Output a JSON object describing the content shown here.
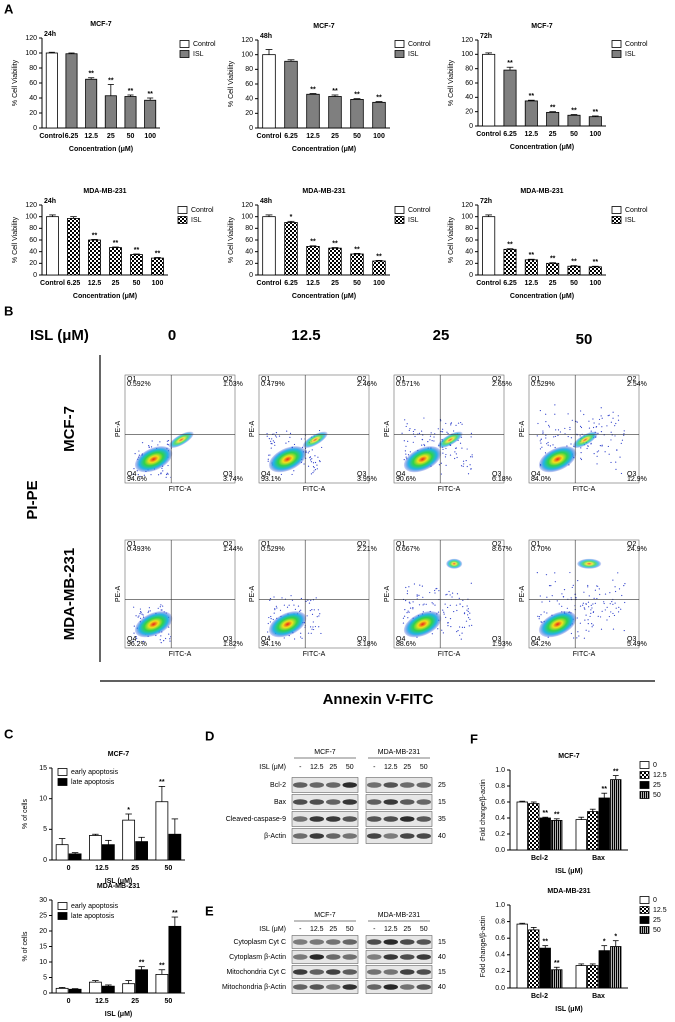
{
  "panel_labels": [
    "A",
    "B",
    "C",
    "D",
    "E",
    "F"
  ],
  "chart_data": [
    {
      "type": "bar",
      "title": "MCF-7",
      "subtitle": "24h",
      "xlabel": "Concentration (μM)",
      "ylabel": "% Cell Viability",
      "categories": [
        "Control",
        "6.25",
        "12.5",
        "25",
        "50",
        "100"
      ],
      "ylim": [
        0,
        120
      ],
      "yticks": [
        0,
        20,
        40,
        60,
        80,
        100,
        120
      ],
      "series": [
        {
          "name": "Control",
          "color": "#ffffff",
          "values": [
            100,
            null,
            null,
            null,
            null,
            null
          ],
          "errors": [
            1,
            null,
            null,
            null,
            null,
            null
          ]
        },
        {
          "name": "ISL",
          "color": "#7f7f7f",
          "values": [
            null,
            99,
            65,
            43,
            42,
            37
          ],
          "errors": [
            null,
            1,
            2,
            15,
            2,
            3
          ],
          "labels": [
            null,
            null,
            "**",
            "**",
            "**",
            "**"
          ]
        }
      ]
    },
    {
      "type": "bar",
      "title": "MCF-7",
      "subtitle": "48h",
      "xlabel": "Concentration (μM)",
      "ylabel": "% Cell Viability",
      "categories": [
        "Control",
        "6.25",
        "12.5",
        "25",
        "50",
        "100"
      ],
      "ylim": [
        0,
        120
      ],
      "yticks": [
        0,
        20,
        40,
        60,
        80,
        100,
        120
      ],
      "series": [
        {
          "name": "Control",
          "color": "#ffffff",
          "values": [
            100,
            null,
            null,
            null,
            null,
            null
          ],
          "errors": [
            7,
            null,
            null,
            null,
            null,
            null
          ]
        },
        {
          "name": "ISL",
          "color": "#7f7f7f",
          "values": [
            null,
            91,
            46,
            43,
            39,
            35
          ],
          "errors": [
            null,
            2,
            1,
            2,
            1,
            1
          ],
          "labels": [
            null,
            null,
            "**",
            "**",
            "**",
            "**"
          ]
        }
      ]
    },
    {
      "type": "bar",
      "title": "MCF-7",
      "subtitle": "72h",
      "xlabel": "Concentration (μM)",
      "ylabel": "% Cell Viability",
      "categories": [
        "Control",
        "6.25",
        "12.5",
        "25",
        "50",
        "100"
      ],
      "ylim": [
        0,
        120
      ],
      "yticks": [
        0,
        20,
        40,
        60,
        80,
        100,
        120
      ],
      "series": [
        {
          "name": "Control",
          "color": "#ffffff",
          "values": [
            100,
            null,
            null,
            null,
            null,
            null
          ],
          "errors": [
            2,
            null,
            null,
            null,
            null,
            null
          ]
        },
        {
          "name": "ISL",
          "color": "#7f7f7f",
          "values": [
            null,
            78,
            35,
            19,
            15,
            13
          ],
          "errors": [
            null,
            4,
            1,
            1,
            1,
            1
          ],
          "labels": [
            null,
            "**",
            "**",
            "**",
            "**",
            "**"
          ]
        }
      ]
    },
    {
      "type": "bar",
      "title": "MDA-MB-231",
      "subtitle": "24h",
      "xlabel": "Concentration (μM)",
      "ylabel": "% Cell Viability",
      "categories": [
        "Control",
        "6.25",
        "12.5",
        "25",
        "50",
        "100"
      ],
      "ylim": [
        0,
        120
      ],
      "yticks": [
        0,
        20,
        40,
        60,
        80,
        100,
        120
      ],
      "series": [
        {
          "name": "Control",
          "color": "#ffffff",
          "values": [
            100,
            null,
            null,
            null,
            null,
            null
          ],
          "errors": [
            3,
            null,
            null,
            null,
            null,
            null
          ]
        },
        {
          "name": "ISL",
          "color": "#000000",
          "pattern": "checker",
          "values": [
            null,
            97,
            60,
            47,
            35,
            29
          ],
          "errors": [
            null,
            3,
            1,
            1,
            1,
            1
          ],
          "labels": [
            null,
            null,
            "**",
            "**",
            "**",
            "**"
          ]
        }
      ]
    },
    {
      "type": "bar",
      "title": "MDA-MB-231",
      "subtitle": "48h",
      "xlabel": "Concentration (μM)",
      "ylabel": "% Cell Viability",
      "categories": [
        "Control",
        "6.25",
        "12.5",
        "25",
        "50",
        "100"
      ],
      "ylim": [
        0,
        120
      ],
      "yticks": [
        0,
        20,
        40,
        60,
        80,
        100,
        120
      ],
      "series": [
        {
          "name": "Control",
          "color": "#ffffff",
          "values": [
            100,
            null,
            null,
            null,
            null,
            null
          ],
          "errors": [
            3,
            null,
            null,
            null,
            null,
            null
          ]
        },
        {
          "name": "ISL",
          "color": "#000000",
          "pattern": "checker",
          "values": [
            null,
            90,
            49,
            46,
            36,
            24
          ],
          "errors": [
            null,
            2,
            1,
            1,
            1,
            1
          ],
          "labels": [
            null,
            "*",
            "**",
            "**",
            "**",
            "**"
          ]
        }
      ]
    },
    {
      "type": "bar",
      "title": "MDA-MB-231",
      "subtitle": "72h",
      "xlabel": "Concentration (μM)",
      "ylabel": "% Cell Viability",
      "categories": [
        "Control",
        "6.25",
        "12.5",
        "25",
        "50",
        "100"
      ],
      "ylim": [
        0,
        120
      ],
      "yticks": [
        0,
        20,
        40,
        60,
        80,
        100,
        120
      ],
      "series": [
        {
          "name": "Control",
          "color": "#ffffff",
          "values": [
            100,
            null,
            null,
            null,
            null,
            null
          ],
          "errors": [
            3,
            null,
            null,
            null,
            null,
            null
          ]
        },
        {
          "name": "ISL",
          "color": "#000000",
          "pattern": "checker",
          "values": [
            null,
            44,
            26,
            20,
            15,
            14
          ],
          "errors": [
            null,
            1,
            1,
            1,
            1,
            1
          ],
          "labels": [
            null,
            "**",
            "**",
            "**",
            "**",
            "**"
          ]
        }
      ]
    },
    {
      "type": "bar",
      "title": "MCF-7",
      "xlabel": "ISL (μM)",
      "ylabel": "% of cells",
      "categories": [
        "0",
        "12.5",
        "25",
        "50"
      ],
      "ylim": [
        0,
        15
      ],
      "yticks": [
        0,
        5,
        10,
        15
      ],
      "series": [
        {
          "name": "early apoptosis",
          "color": "#ffffff",
          "values": [
            2.5,
            4,
            6.5,
            9.5
          ],
          "errors": [
            1,
            0.2,
            1,
            2.5
          ],
          "labels": [
            null,
            null,
            "*",
            "**"
          ]
        },
        {
          "name": "late apoptosis",
          "color": "#000000",
          "values": [
            1,
            2.5,
            3,
            4.2
          ],
          "errors": [
            0.2,
            0.7,
            0.7,
            2.5
          ]
        }
      ]
    },
    {
      "type": "bar",
      "title": "MDA-MB-231",
      "xlabel": "ISL (μM)",
      "ylabel": "% of cells",
      "categories": [
        "0",
        "12.5",
        "25",
        "50"
      ],
      "ylim": [
        0,
        30
      ],
      "yticks": [
        0,
        5,
        10,
        15,
        20,
        25,
        30
      ],
      "series": [
        {
          "name": "early apoptosis",
          "color": "#ffffff",
          "values": [
            1.5,
            3.5,
            3,
            6
          ],
          "errors": [
            0.3,
            0.5,
            1,
            1.5
          ],
          "labels": [
            null,
            null,
            null,
            "**"
          ]
        },
        {
          "name": "late apoptosis",
          "color": "#000000",
          "values": [
            1.2,
            2.2,
            7.5,
            21.5
          ],
          "errors": [
            0.2,
            0.4,
            1,
            3
          ],
          "labels": [
            null,
            null,
            "**",
            "**"
          ]
        }
      ]
    },
    {
      "type": "bar",
      "title": "MCF-7",
      "xlabel": "ISL (μM)",
      "ylabel": "Fold change/β-actin",
      "categories": [
        "Bcl-2",
        "Bax"
      ],
      "ylim": [
        0,
        1
      ],
      "yticks": [
        {
          "value": 0,
          "label": "0.0"
        },
        0.2,
        0.4,
        0.6,
        0.8,
        {
          "value": 1,
          "label": "1.0"
        }
      ],
      "series": [
        {
          "name": "0",
          "color": "#ffffff",
          "values": [
            0.6,
            0.38
          ],
          "errors": [
            0.01,
            0.03
          ]
        },
        {
          "name": "12.5",
          "color": "#000000",
          "pattern": "checker",
          "values": [
            0.58,
            0.48
          ],
          "errors": [
            0.02,
            0.03
          ]
        },
        {
          "name": "25",
          "color": "#000000",
          "values": [
            0.4,
            0.65
          ],
          "errors": [
            0.01,
            0.06
          ],
          "labels": [
            "**",
            "**"
          ]
        },
        {
          "name": "50",
          "color": "#000000",
          "pattern": "stripes",
          "values": [
            0.37,
            0.88
          ],
          "errors": [
            0.02,
            0.05
          ],
          "labels": [
            "**",
            "**"
          ]
        }
      ]
    },
    {
      "type": "bar",
      "title": "MDA-MB-231",
      "xlabel": "ISL (μM)",
      "ylabel": "Fold change/β-actin",
      "categories": [
        "Bcl-2",
        "Bax"
      ],
      "ylim": [
        0,
        1
      ],
      "yticks": [
        {
          "value": 0,
          "label": "0.0"
        },
        0.2,
        0.4,
        0.6,
        0.8,
        {
          "value": 1,
          "label": "1.0"
        }
      ],
      "series": [
        {
          "name": "0",
          "color": "#ffffff",
          "values": [
            0.77,
            0.27
          ],
          "errors": [
            0.01,
            0.02
          ]
        },
        {
          "name": "12.5",
          "color": "#000000",
          "pattern": "checker",
          "values": [
            0.7,
            0.27
          ],
          "errors": [
            0.03,
            0.02
          ]
        },
        {
          "name": "25",
          "color": "#000000",
          "values": [
            0.48,
            0.45
          ],
          "errors": [
            0.03,
            0.06
          ],
          "labels": [
            "**",
            "*"
          ]
        },
        {
          "name": "50",
          "color": "#000000",
          "pattern": "stripes",
          "values": [
            0.22,
            0.5
          ],
          "errors": [
            0.03,
            0.07
          ],
          "labels": [
            "**",
            "*"
          ]
        }
      ]
    }
  ],
  "flow": {
    "dose_label": "ISL (μM)",
    "doses": [
      "0",
      "12.5",
      "25",
      "50"
    ],
    "y_label": "PI-PE",
    "x_label": "Annexin V-FITC",
    "axis_x": "FITC-A",
    "axis_y": "PE-A",
    "quadrants": [
      "Q1",
      "Q2",
      "Q3",
      "Q4"
    ],
    "rows": [
      {
        "name": "MCF-7",
        "plots": [
          {
            "q1": "0.592%",
            "q2": "1.03%",
            "q3": "3.74%",
            "q4": "94.6%"
          },
          {
            "q1": "0.479%",
            "q2": "2.46%",
            "q3": "3.95%",
            "q4": "93.1%"
          },
          {
            "q1": "0.571%",
            "q2": "2.65%",
            "q3": "6.18%",
            "q4": "90.6%"
          },
          {
            "q1": "0.529%",
            "q2": "2.54%",
            "q3": "12.9%",
            "q4": "84.0%"
          }
        ]
      },
      {
        "name": "MDA-MB-231",
        "plots": [
          {
            "q1": "0.493%",
            "q2": "1.44%",
            "q3": "1.82%",
            "q4": "96.2%"
          },
          {
            "q1": "0.529%",
            "q2": "2.21%",
            "q3": "3.18%",
            "q4": "94.1%"
          },
          {
            "q1": "0.667%",
            "q2": "8.67%",
            "q3": "1.93%",
            "q4": "88.6%"
          },
          {
            "q1": "0.70%",
            "q2": "24.9%",
            "q3": "5.49%",
            "q4": "64.2%"
          }
        ]
      }
    ]
  },
  "blots": [
    {
      "dose_label": "ISL (μM)",
      "groups": [
        "MCF-7",
        "MDA-MB-231"
      ],
      "lanes": [
        "-",
        "12.5",
        "25",
        "50"
      ],
      "rows": [
        {
          "name": "Bcl-2",
          "kda": 25
        },
        {
          "name": "Bax",
          "kda": 15
        },
        {
          "name": "Cleaved-caspase-9",
          "kda": 35
        },
        {
          "name": "β-Actin",
          "kda": 40
        }
      ]
    },
    {
      "dose_label": "ISL (μM)",
      "groups": [
        "MCF-7",
        "MDA-MB-231"
      ],
      "lanes": [
        "-",
        "12.5",
        "25",
        "50"
      ],
      "rows": [
        {
          "name": "Cytoplasm Cyt C",
          "kda": 15
        },
        {
          "name": "Cytoplasm β-Actin",
          "kda": 40
        },
        {
          "name": "Mitochondria Cyt C",
          "kda": 15
        },
        {
          "name": "Mitochondria β-Actin",
          "kda": 40
        }
      ]
    }
  ]
}
